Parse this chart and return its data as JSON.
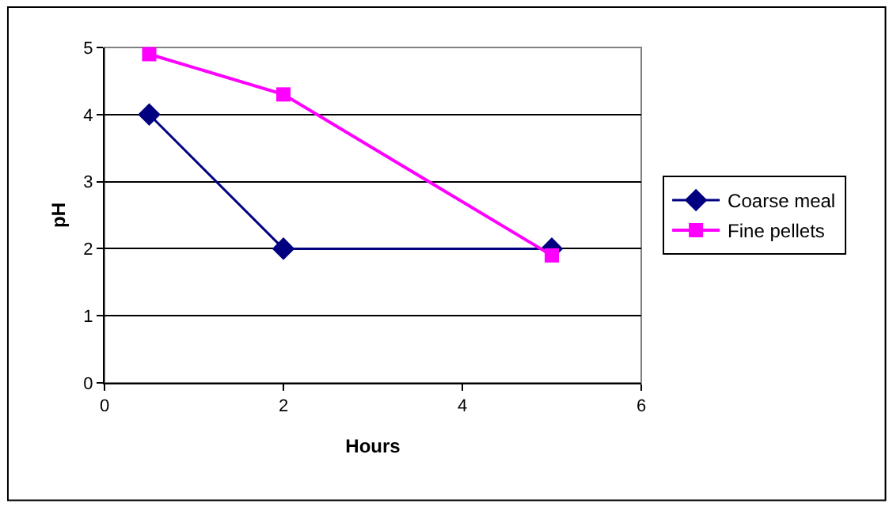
{
  "chart_data": {
    "type": "line",
    "xlabel": "Hours",
    "ylabel": "pH",
    "x": [
      0.5,
      2,
      5
    ],
    "series": [
      {
        "name": "Coarse meal",
        "color": "#000080",
        "values": [
          4,
          2,
          2
        ],
        "marker": "diamond"
      },
      {
        "name": "Fine pellets",
        "color": "#ff00ff",
        "values": [
          4.9,
          4.3,
          1.9
        ],
        "marker": "square"
      }
    ],
    "xlim": [
      0,
      6
    ],
    "xticks": [
      0,
      2,
      4,
      6
    ],
    "ylim": [
      0,
      5
    ],
    "yticks": [
      0,
      1,
      2,
      3,
      4,
      5
    ],
    "grid": "y",
    "legend": "right",
    "line_style": "solid"
  }
}
